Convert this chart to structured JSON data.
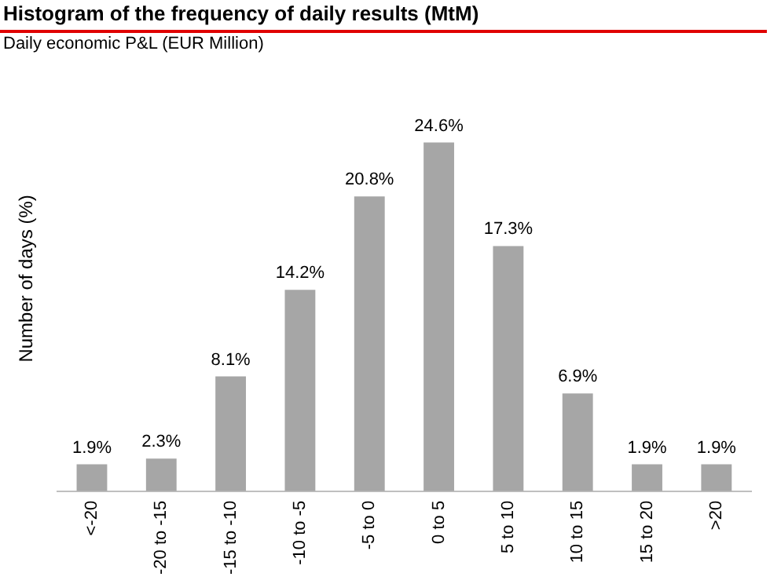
{
  "chart_data": {
    "type": "bar",
    "title": "Histogram of the frequency of daily results (MtM)",
    "subtitle": "Daily economic P&L (EUR Million)",
    "ylabel": "Number of days (%)",
    "categories": [
      "<-20",
      "-20 to -15",
      "-15 to -10",
      "-10 to -5",
      "-5 to 0",
      "0 to 5",
      "5 to 10",
      "10 to 15",
      "15 to 20",
      ">20"
    ],
    "values": [
      1.9,
      2.3,
      8.1,
      14.2,
      20.8,
      24.6,
      17.3,
      6.9,
      1.9,
      1.9
    ],
    "value_labels": [
      "1.9%",
      "2.3%",
      "8.1%",
      "14.2%",
      "20.8%",
      "24.6%",
      "17.3%",
      "6.9%",
      "1.9%",
      "1.9%"
    ],
    "color": "#a6a6a6",
    "grid": false,
    "legend": false,
    "tick_labels": "x"
  }
}
